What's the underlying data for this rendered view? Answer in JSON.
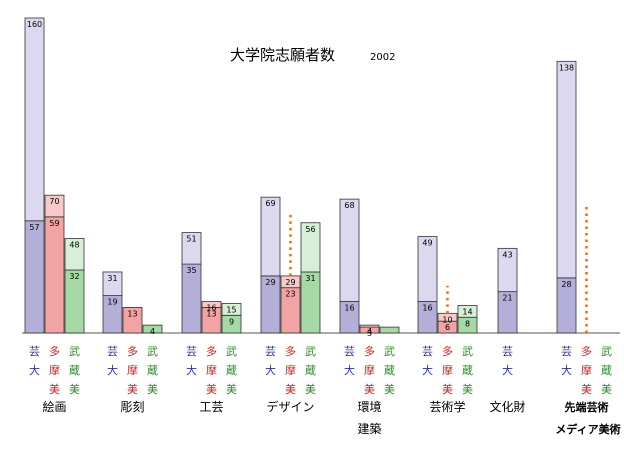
{
  "chart_data": {
    "type": "bar",
    "title": "大学院志願者数",
    "subtitle": "2002",
    "ylim": [
      0,
      170
    ],
    "grid": false,
    "legend": "none",
    "colors": {
      "bar_light": [
        "#dcd8ef",
        "#f9c9c9",
        "#d6efd6"
      ],
      "bar_dark": [
        "#b4afd9",
        "#f2a3a3",
        "#a5d9a5"
      ],
      "school_text": [
        "#2c3590",
        "#cc2222",
        "#2a8c2a"
      ],
      "dotted_line": "#ff6600"
    },
    "groups": [
      {
        "name": "絵画",
        "name2": "",
        "schools": [
          {
            "code": "芸大",
            "chars": [
              "芸",
              "大"
            ],
            "segment_values": [
              57,
              103
            ],
            "labels": [
              "57",
              "160"
            ],
            "dotted_to": null
          },
          {
            "code": "多摩美",
            "chars": [
              "多",
              "摩",
              "美"
            ],
            "segment_values": [
              59,
              11
            ],
            "labels": [
              "59",
              "70"
            ],
            "dotted_to": null
          },
          {
            "code": "武蔵美",
            "chars": [
              "武",
              "蔵",
              "美"
            ],
            "segment_values": [
              32,
              16
            ],
            "labels": [
              "32",
              "48"
            ],
            "dotted_to": null
          }
        ]
      },
      {
        "name": "彫刻",
        "name2": "",
        "schools": [
          {
            "code": "芸大",
            "chars": [
              "芸",
              "大"
            ],
            "segment_values": [
              19,
              12
            ],
            "labels": [
              "19",
              "31"
            ],
            "dotted_to": null
          },
          {
            "code": "多摩美",
            "chars": [
              "多",
              "摩",
              "美"
            ],
            "segment_values": [
              13
            ],
            "labels": [
              "13"
            ],
            "dotted_to": null
          },
          {
            "code": "武蔵美",
            "chars": [
              "武",
              "蔵",
              "美"
            ],
            "segment_values": [
              4
            ],
            "labels": [
              "4"
            ],
            "dotted_to": null
          }
        ]
      },
      {
        "name": "工芸",
        "name2": "",
        "schools": [
          {
            "code": "芸大",
            "chars": [
              "芸",
              "大"
            ],
            "segment_values": [
              35,
              16
            ],
            "labels": [
              "35",
              "51"
            ],
            "dotted_to": null
          },
          {
            "code": "多摩美",
            "chars": [
              "多",
              "摩",
              "美"
            ],
            "segment_values": [
              13,
              3
            ],
            "labels": [
              "13",
              "16"
            ],
            "dotted_to": null
          },
          {
            "code": "武蔵美",
            "chars": [
              "武",
              "蔵",
              "美"
            ],
            "segment_values": [
              9,
              6
            ],
            "labels": [
              "9",
              "15"
            ],
            "dotted_to": null
          }
        ]
      },
      {
        "name": "デザイン",
        "name2": "",
        "schools": [
          {
            "code": "芸大",
            "chars": [
              "芸",
              "大"
            ],
            "segment_values": [
              29,
              40
            ],
            "labels": [
              "29",
              "69"
            ],
            "dotted_to": null
          },
          {
            "code": "多摩美",
            "chars": [
              "多",
              "摩",
              "美"
            ],
            "segment_values": [
              23,
              6
            ],
            "labels": [
              "23",
              "29"
            ],
            "dotted_to": 62
          },
          {
            "code": "武蔵美",
            "chars": [
              "武",
              "蔵",
              "美"
            ],
            "segment_values": [
              31,
              25
            ],
            "labels": [
              "31",
              "56"
            ],
            "dotted_to": null
          }
        ]
      },
      {
        "name": "環境",
        "name2": "建築",
        "schools": [
          {
            "code": "芸大",
            "chars": [
              "芸",
              "大"
            ],
            "segment_values": [
              16,
              52
            ],
            "labels": [
              "16",
              "68"
            ],
            "dotted_to": null
          },
          {
            "code": "多摩美",
            "chars": [
              "多",
              "摩",
              "美"
            ],
            "segment_values": [
              3,
              1
            ],
            "labels": [
              "3",
              "4"
            ],
            "dotted_to": null
          },
          {
            "code": "武蔵美",
            "chars": [
              "武",
              "蔵",
              "美"
            ],
            "segment_values": [
              3
            ],
            "labels": [
              ""
            ],
            "dotted_to": null
          }
        ]
      },
      {
        "name": "芸術学",
        "name2": "",
        "schools": [
          {
            "code": "芸大",
            "chars": [
              "芸",
              "大"
            ],
            "segment_values": [
              16,
              33
            ],
            "labels": [
              "16",
              "49"
            ],
            "dotted_to": null
          },
          {
            "code": "多摩美",
            "chars": [
              "多",
              "摩",
              "美"
            ],
            "segment_values": [
              6,
              4
            ],
            "labels": [
              "6",
              "10"
            ],
            "dotted_to": 24
          },
          {
            "code": "武蔵美",
            "chars": [
              "武",
              "蔵",
              "美"
            ],
            "segment_values": [
              8,
              6
            ],
            "labels": [
              "8",
              "14"
            ],
            "dotted_to": null
          }
        ]
      },
      {
        "name": "文化財",
        "name2": "",
        "schools": [
          {
            "code": "芸大",
            "chars": [
              "芸",
              "大"
            ],
            "segment_values": [
              21,
              22
            ],
            "labels": [
              "21",
              "43"
            ],
            "dotted_to": null
          }
        ]
      },
      {
        "name": "先端芸術",
        "name2": "メディア美術",
        "schools": [
          {
            "code": "芸大",
            "chars": [
              "芸",
              "大"
            ],
            "segment_values": [
              28,
              110
            ],
            "labels": [
              "28",
              "138"
            ],
            "dotted_to": null
          },
          {
            "code": "多摩美",
            "chars": [
              "多",
              "摩",
              "美"
            ],
            "segment_values": [],
            "labels": [],
            "dotted_to": 65
          },
          {
            "code": "武蔵美",
            "chars": [
              "武",
              "蔵",
              "美"
            ],
            "segment_values": [],
            "labels": [],
            "dotted_to": null
          }
        ]
      }
    ]
  }
}
